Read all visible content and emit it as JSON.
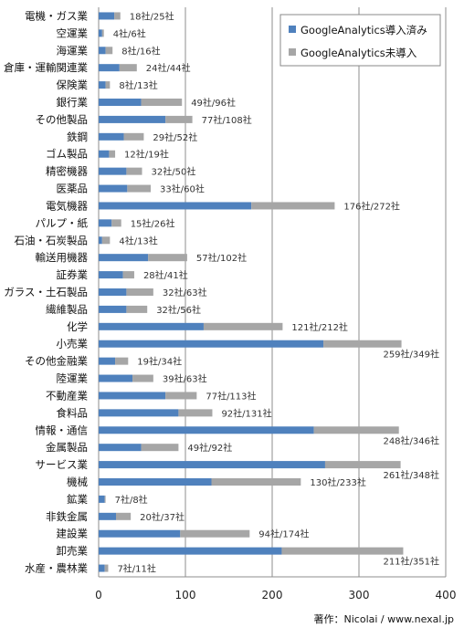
{
  "chart_data": {
    "type": "bar",
    "orientation": "horizontal",
    "stacked": true,
    "categories": [
      "電機・ガス業",
      "空運業",
      "海運業",
      "倉庫・運輸関連業",
      "保険業",
      "銀行業",
      "その他製品",
      "鉄鋼",
      "ゴム製品",
      "精密機器",
      "医薬品",
      "電気機器",
      "パルプ・紙",
      "石油・石炭製品",
      "輸送用機器",
      "証券業",
      "ガラス・土石製品",
      "繊維製品",
      "化学",
      "小売業",
      "その他金融業",
      "陸運業",
      "不動産業",
      "食料品",
      "情報・通信",
      "金属製品",
      "サービス業",
      "機械",
      "鉱業",
      "非鉄金属",
      "建設業",
      "卸売業",
      "水産・農林業"
    ],
    "series": [
      {
        "name": "GoogleAnalytics導入済み",
        "color": "#4f81bd",
        "values": [
          18,
          4,
          8,
          24,
          8,
          49,
          77,
          29,
          12,
          32,
          33,
          176,
          15,
          4,
          57,
          28,
          32,
          32,
          121,
          259,
          19,
          39,
          77,
          92,
          248,
          49,
          261,
          130,
          7,
          20,
          94,
          211,
          7
        ]
      },
      {
        "name": "GoogleAnalytics未導入",
        "color": "#a6a6a6",
        "values": [
          7,
          2,
          8,
          20,
          5,
          47,
          31,
          23,
          7,
          18,
          27,
          96,
          11,
          9,
          45,
          13,
          31,
          24,
          91,
          90,
          15,
          24,
          36,
          39,
          98,
          43,
          87,
          103,
          1,
          17,
          80,
          140,
          4
        ]
      }
    ],
    "data_labels": [
      "18社/25社",
      "4社/6社",
      "8社/16社",
      "24社/44社",
      "8社/13社",
      "49社/96社",
      "77社/108社",
      "29社/52社",
      "12社/19社",
      "32社/50社",
      "33社/60社",
      "176社/272社",
      "15社/26社",
      "4社/13社",
      "57社/102社",
      "28社/41社",
      "32社/63社",
      "32社/56社",
      "121社/212社",
      "259社/349社",
      "19社/34社",
      "39社/63社",
      "77社/113社",
      "92社/131社",
      "248社/346社",
      "49社/92社",
      "261社/348社",
      "130社/233社",
      "7社/8社",
      "20社/37社",
      "94社/174社",
      "211社/351社",
      "7社/11社"
    ],
    "xlim": [
      0,
      400
    ],
    "xticks": [
      "0",
      "100",
      "200",
      "300",
      "400"
    ],
    "grid": true,
    "legend_position": "top-right",
    "credit": "著作：Nicolai / www.nexal.jp"
  }
}
